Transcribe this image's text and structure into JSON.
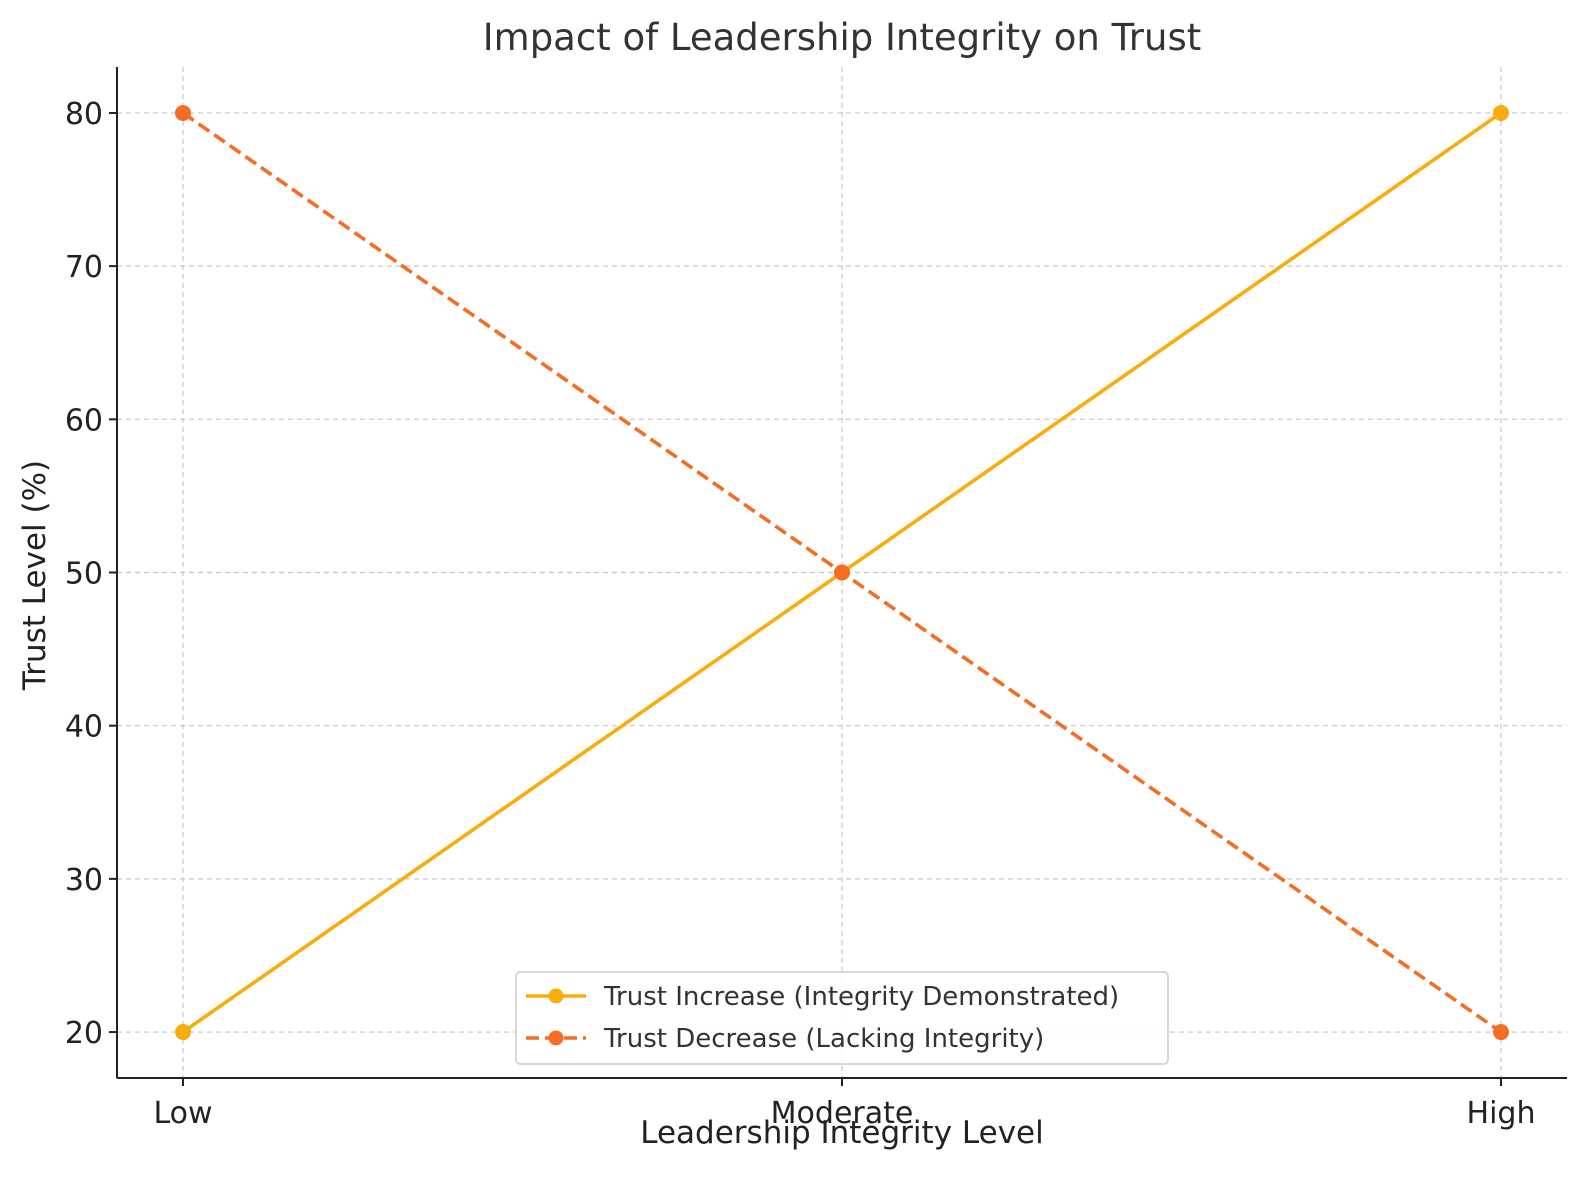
{
  "chart_data": {
    "type": "line",
    "title": "Impact of Leadership Integrity on Trust",
    "xlabel": "Leadership Integrity Level",
    "ylabel": "Trust Level (%)",
    "categories": [
      "Low",
      "Moderate",
      "High"
    ],
    "ylim": [
      17,
      83
    ],
    "yticks": [
      20,
      30,
      40,
      50,
      60,
      70,
      80
    ],
    "grid": true,
    "legend_position": "bottom-center",
    "series": [
      {
        "name": "Trust Increase (Integrity Demonstrated)",
        "values": [
          20,
          50,
          80
        ],
        "color": "#f9ad0d",
        "line_style": "solid",
        "marker": "circle"
      },
      {
        "name": "Trust Decrease (Lacking Integrity)",
        "values": [
          80,
          50,
          20
        ],
        "color": "#f46d25",
        "line_style": "dashed",
        "marker": "circle"
      }
    ]
  }
}
